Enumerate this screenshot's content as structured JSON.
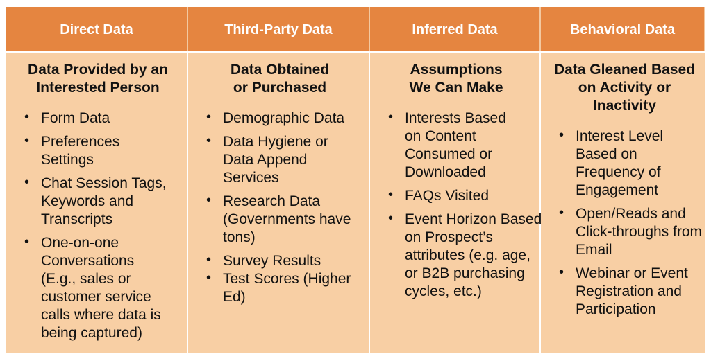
{
  "columns": [
    {
      "header": "Direct Data",
      "title": "Data Provided by an Interested Person",
      "items": [
        "Form Data",
        "Preferences Settings",
        "Chat Session Tags, Keywords and Transcripts",
        "One-on-one Conversations (E.g., sales or customer service calls where data is being captured)"
      ]
    },
    {
      "header": "Third-Party Data",
      "title": "Data Obtained or Purchased",
      "items": [
        "Demographic Data",
        "Data Hygiene or Data Append Services",
        "Research Data (Governments have tons)",
        "Survey Results",
        "Test Scores (Higher Ed)"
      ]
    },
    {
      "header": "Inferred Data",
      "title": "Assumptions We Can Make",
      "items": [
        "Interests Based on Content Consumed or Downloaded",
        "FAQs Visited",
        "Event Horizon Based on Prospect’s attributes (e.g. age, or B2B purchasing cycles, etc.)"
      ]
    },
    {
      "header": "Behavioral Data",
      "title": "Data Gleaned Based on Activity or Inactivity",
      "items": [
        "Interest Level Based on Frequency of Engagement",
        "Open/Reads and Click-throughs from Email",
        "Webinar or Event Registration and Participation"
      ]
    }
  ]
}
